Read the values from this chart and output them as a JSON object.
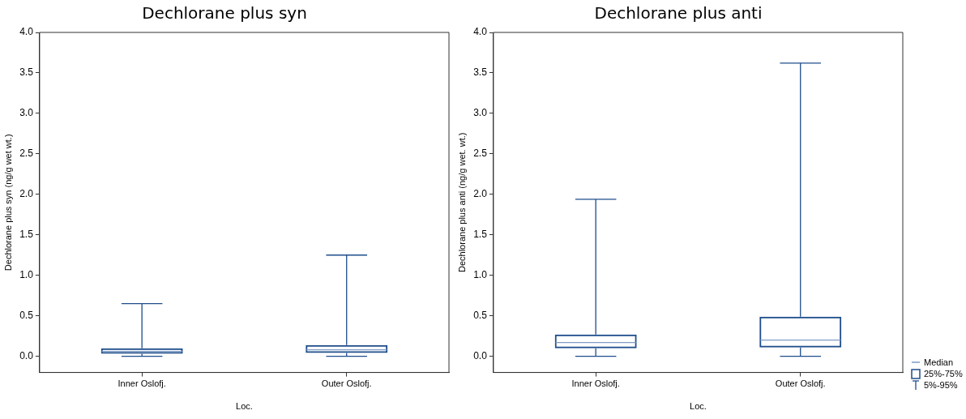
{
  "chart_data": [
    {
      "type": "box",
      "title": "Dechlorane plus syn",
      "xlabel": "Loc.",
      "ylabel": "Dechlorane plus syn (ng/g wet wt.)",
      "categories": [
        "Inner Oslofj.",
        "Outer Oslofj."
      ],
      "color": "#1f4e8c",
      "boxes": [
        {
          "low": 0,
          "q1": 0.03,
          "median": 0.06,
          "q3": 0.1,
          "high": 0.65
        },
        {
          "low": 0,
          "q1": 0.04,
          "median": 0.08,
          "q3": 0.14,
          "high": 1.25
        }
      ],
      "ylim": [
        -0.2,
        4.0
      ],
      "yticks": [
        {
          "value": 0,
          "label": "0.0"
        },
        0.5,
        {
          "value": 1,
          "label": "1.0"
        },
        1.5,
        {
          "value": 2,
          "label": "2.0"
        },
        2.5,
        {
          "value": 3,
          "label": "3.0"
        },
        3.5,
        {
          "value": 4,
          "label": "4.0"
        }
      ],
      "grid": false
    },
    {
      "type": "box",
      "title": "Dechlorane plus anti",
      "xlabel": "Loc.",
      "ylabel": "Dechlorane plus anti (ng/g wet. wt.)",
      "categories": [
        "Inner Oslofj.",
        "Outer Oslofj."
      ],
      "color": "#1f4e8c",
      "boxes": [
        {
          "low": 0,
          "q1": 0.1,
          "median": 0.17,
          "q3": 0.27,
          "high": 1.94
        },
        {
          "low": 0,
          "q1": 0.11,
          "median": 0.2,
          "q3": 0.49,
          "high": 3.62
        }
      ],
      "ylim": [
        -0.2,
        4.0
      ],
      "yticks": [
        {
          "value": 0,
          "label": "0.0"
        },
        0.5,
        {
          "value": 1,
          "label": "1.0"
        },
        1.5,
        {
          "value": 2,
          "label": "2.0"
        },
        2.5,
        {
          "value": 3,
          "label": "3.0"
        },
        3.5,
        {
          "value": 4,
          "label": "4.0"
        }
      ],
      "grid": false,
      "annotations": [
        "Median",
        "25%-75%",
        "5%-95%"
      ]
    }
  ]
}
